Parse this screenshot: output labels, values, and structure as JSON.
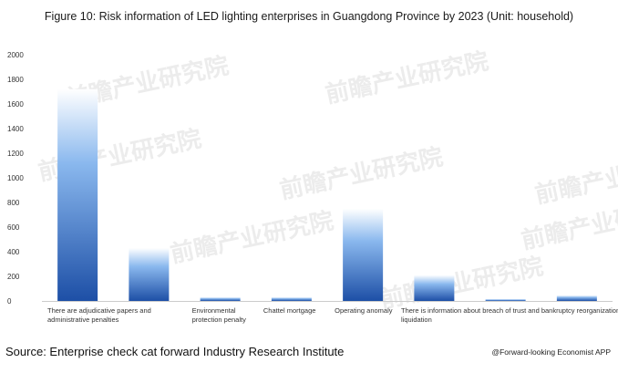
{
  "title": "Figure 10: Risk information of LED lighting enterprises in Guangdong Province by 2023 (Unit: household)",
  "source": "Source: Enterprise check cat forward Industry Research Institute",
  "credit": "@Forward-looking Economist APP",
  "watermark": "前瞻产业研究院",
  "colors": {
    "bar_top": "#ffffff",
    "bar_mid": "#8ab8ee",
    "bar_bottom": "#1d4fa6",
    "axis": "#cccccc"
  },
  "chart_data": {
    "type": "bar",
    "categories": [
      "There are adjudicative papers and administrative penalties",
      "",
      "Environmental protection penalty",
      "Chattel mortgage",
      "Operating anomaly",
      "There is information about breach of trust and bankruptcy reorganization and liquidation",
      "",
      ""
    ],
    "category_labels": [
      [
        "There are adjudicative papers and",
        "administrative penalties"
      ],
      [],
      [
        "Environmental",
        "protection penalty"
      ],
      [
        "Chattel mortgage"
      ],
      [
        "Operating anomaly"
      ],
      [
        "There is information about breach of trust and bankruptcy reorganization and",
        "liquidation"
      ],
      [],
      []
    ],
    "values": [
      1720,
      430,
      30,
      30,
      750,
      210,
      15,
      45
    ],
    "yticks": [
      0,
      200,
      400,
      600,
      800,
      1000,
      1200,
      1400,
      1600,
      1800,
      2000
    ],
    "ylim": [
      0,
      2000
    ],
    "title": "Figure 10: Risk information of LED lighting enterprises in Guangdong Province by 2023 (Unit: household)",
    "xlabel": "",
    "ylabel": "",
    "grid": false,
    "legend": "none"
  }
}
